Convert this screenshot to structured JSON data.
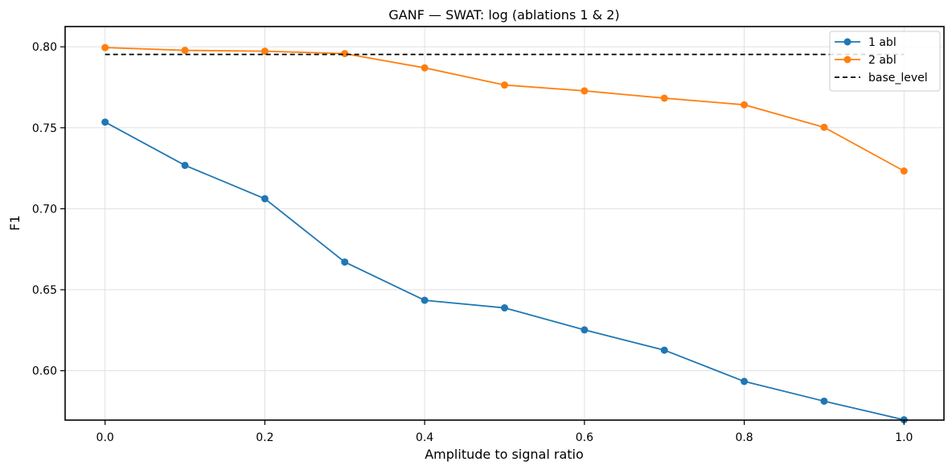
{
  "chart_data": {
    "type": "line",
    "title": "GANF — SWAT: log (ablations 1 & 2)",
    "xlabel": "Amplitude to signal ratio",
    "ylabel": "F1",
    "x": [
      0.0,
      0.1,
      0.2,
      0.3,
      0.4,
      0.5,
      0.6,
      0.7,
      0.8,
      0.9,
      1.0
    ],
    "xlim": [
      -0.05,
      1.05
    ],
    "ylim": [
      0.5695,
      0.8125
    ],
    "xticks": [
      0.0,
      0.2,
      0.4,
      0.6,
      0.8,
      1.0
    ],
    "xtick_labels": [
      "0.0",
      "0.2",
      "0.4",
      "0.6",
      "0.8",
      "1.0"
    ],
    "yticks": [
      0.6,
      0.65,
      0.7,
      0.75,
      0.8
    ],
    "ytick_labels": [
      "0.60",
      "0.65",
      "0.70",
      "0.75",
      "0.80"
    ],
    "grid": true,
    "legend_position": "top-right",
    "series": [
      {
        "name": "1 abl",
        "color": "#1f77b4",
        "marker": "circle",
        "values": [
          0.7535,
          0.7268,
          0.7062,
          0.6671,
          0.6435,
          0.6388,
          0.6252,
          0.6127,
          0.5934,
          0.5812,
          0.5697
        ]
      },
      {
        "name": "2 abl",
        "color": "#ff7f0e",
        "marker": "circle",
        "values": [
          0.7995,
          0.7978,
          0.7973,
          0.7958,
          0.787,
          0.7764,
          0.7728,
          0.7683,
          0.7642,
          0.7503,
          0.7233
        ]
      }
    ],
    "reference_lines": [
      {
        "name": "base_level",
        "color": "#000000",
        "style": "dashed",
        "y": 0.7953,
        "x_range": [
          0.0,
          1.0
        ]
      }
    ]
  }
}
